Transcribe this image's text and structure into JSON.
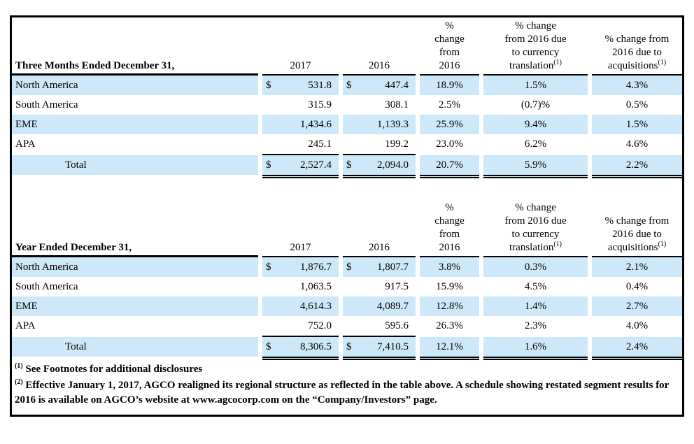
{
  "colors": {
    "row_stripe": "#cce8f9",
    "rule": "#000000"
  },
  "table1": {
    "title": "Three Months Ended December 31,",
    "col_2017": "2017",
    "col_2016": "2016",
    "col_pct": "%\nchange\nfrom\n2016",
    "col_currency": "% change\nfrom 2016 due\nto currency\ntranslation",
    "col_currency_sup": "(1)",
    "col_acq": "% change from\n2016 due to\nacquisitions",
    "col_acq_sup": "(1)",
    "rows": [
      {
        "label": "North America",
        "cur2017": "$",
        "v2017": "531.8",
        "cur2016": "$",
        "v2016": "447.4",
        "pct": "18.9%",
        "fx": "1.5%",
        "acq": "4.3%"
      },
      {
        "label": "South America",
        "cur2017": "",
        "v2017": "315.9",
        "cur2016": "",
        "v2016": "308.1",
        "pct": "2.5%",
        "fx": "(0.7)%",
        "acq": "0.5%"
      },
      {
        "label": "EME",
        "cur2017": "",
        "v2017": "1,434.6",
        "cur2016": "",
        "v2016": "1,139.3",
        "pct": "25.9%",
        "fx": "9.4%",
        "acq": "1.5%"
      },
      {
        "label": "APA",
        "cur2017": "",
        "v2017": "245.1",
        "cur2016": "",
        "v2016": "199.2",
        "pct": "23.0%",
        "fx": "6.2%",
        "acq": "4.6%"
      },
      {
        "label": "Total",
        "cur2017": "$",
        "v2017": "2,527.4",
        "cur2016": "$",
        "v2016": "2,094.0",
        "pct": "20.7%",
        "fx": "5.9%",
        "acq": "2.2%"
      }
    ]
  },
  "table2": {
    "title": "Year Ended December 31,",
    "col_2017": "2017",
    "col_2016": "2016",
    "col_pct": "%\nchange\nfrom\n2016",
    "col_currency": "% change\nfrom 2016 due\nto currency\ntranslation",
    "col_currency_sup": "(1)",
    "col_acq": "% change from\n2016 due to\nacquisitions",
    "col_acq_sup": "(1)",
    "rows": [
      {
        "label": "North America",
        "cur2017": "$",
        "v2017": "1,876.7",
        "cur2016": "$",
        "v2016": "1,807.7",
        "pct": "3.8%",
        "fx": "0.3%",
        "acq": "2.1%"
      },
      {
        "label": "South America",
        "cur2017": "",
        "v2017": "1,063.5",
        "cur2016": "",
        "v2016": "917.5",
        "pct": "15.9%",
        "fx": "4.5%",
        "acq": "0.4%"
      },
      {
        "label": "EME",
        "cur2017": "",
        "v2017": "4,614.3",
        "cur2016": "",
        "v2016": "4,089.7",
        "pct": "12.8%",
        "fx": "1.4%",
        "acq": "2.7%"
      },
      {
        "label": "APA",
        "cur2017": "",
        "v2017": "752.0",
        "cur2016": "",
        "v2016": "595.6",
        "pct": "26.3%",
        "fx": "2.3%",
        "acq": "4.0%"
      },
      {
        "label": "Total",
        "cur2017": "$",
        "v2017": "8,306.5",
        "cur2016": "$",
        "v2016": "7,410.5",
        "pct": "12.1%",
        "fx": "1.6%",
        "acq": "2.4%"
      }
    ]
  },
  "footnotes": [
    {
      "marker": "(1)",
      "text": "See Footnotes for additional disclosures"
    },
    {
      "marker": "(2)",
      "text": "Effective January 1, 2017, AGCO realigned its regional structure as reflected in the table above. A schedule showing restated segment results for 2016 is available on AGCO’s website at www.agcocorp.com on the “Company/Investors” page."
    }
  ]
}
